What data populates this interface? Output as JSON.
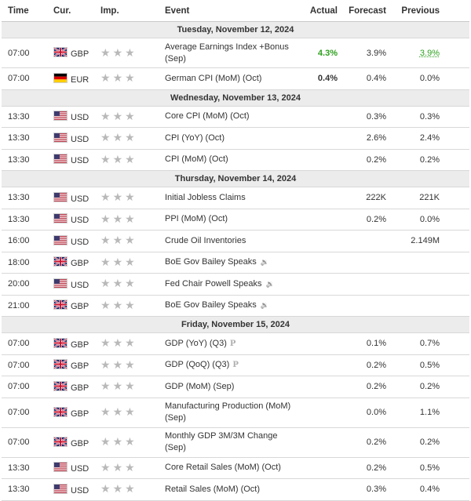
{
  "columns": {
    "time": "Time",
    "currency": "Cur.",
    "importance": "Imp.",
    "event": "Event",
    "actual": "Actual",
    "forecast": "Forecast",
    "previous": "Previous"
  },
  "days": [
    {
      "label": "Tuesday, November 12, 2024",
      "events": [
        {
          "time": "07:00",
          "flag": "gb",
          "currency": "GBP",
          "event": "Average Earnings Index +Bonus (Sep)",
          "icon": "",
          "actual": "4.3%",
          "actual_color": "green",
          "forecast": "3.9%",
          "previous": "3.9%",
          "previous_style": "revised-green",
          "tall": true
        },
        {
          "time": "07:00",
          "flag": "de",
          "currency": "EUR",
          "event": "German CPI (MoM) (Oct)",
          "icon": "",
          "actual": "0.4%",
          "actual_color": "",
          "forecast": "0.4%",
          "previous": "0.0%",
          "previous_style": "",
          "tall": false
        }
      ]
    },
    {
      "label": "Wednesday, November 13, 2024",
      "events": [
        {
          "time": "13:30",
          "flag": "us",
          "currency": "USD",
          "event": "Core CPI (MoM) (Oct)",
          "icon": "",
          "actual": "",
          "actual_color": "",
          "forecast": "0.3%",
          "previous": "0.3%",
          "previous_style": "",
          "tall": false
        },
        {
          "time": "13:30",
          "flag": "us",
          "currency": "USD",
          "event": "CPI (YoY) (Oct)",
          "icon": "",
          "actual": "",
          "actual_color": "",
          "forecast": "2.6%",
          "previous": "2.4%",
          "previous_style": "",
          "tall": false
        },
        {
          "time": "13:30",
          "flag": "us",
          "currency": "USD",
          "event": "CPI (MoM) (Oct)",
          "icon": "",
          "actual": "",
          "actual_color": "",
          "forecast": "0.2%",
          "previous": "0.2%",
          "previous_style": "",
          "tall": false
        }
      ]
    },
    {
      "label": "Thursday, November 14, 2024",
      "events": [
        {
          "time": "13:30",
          "flag": "us",
          "currency": "USD",
          "event": "Initial Jobless Claims",
          "icon": "",
          "actual": "",
          "actual_color": "",
          "forecast": "222K",
          "previous": "221K",
          "previous_style": "",
          "tall": false
        },
        {
          "time": "13:30",
          "flag": "us",
          "currency": "USD",
          "event": "PPI (MoM) (Oct)",
          "icon": "",
          "actual": "",
          "actual_color": "",
          "forecast": "0.2%",
          "previous": "0.0%",
          "previous_style": "",
          "tall": false
        },
        {
          "time": "16:00",
          "flag": "us",
          "currency": "USD",
          "event": "Crude Oil Inventories",
          "icon": "",
          "actual": "",
          "actual_color": "",
          "forecast": "",
          "previous": "2.149M",
          "previous_style": "",
          "tall": false
        },
        {
          "time": "18:00",
          "flag": "gb",
          "currency": "GBP",
          "event": "BoE Gov Bailey Speaks",
          "icon": "speaker",
          "actual": "",
          "actual_color": "",
          "forecast": "",
          "previous": "",
          "previous_style": "",
          "tall": false
        },
        {
          "time": "20:00",
          "flag": "us",
          "currency": "USD",
          "event": "Fed Chair Powell Speaks",
          "icon": "speaker",
          "actual": "",
          "actual_color": "",
          "forecast": "",
          "previous": "",
          "previous_style": "",
          "tall": false
        },
        {
          "time": "21:00",
          "flag": "gb",
          "currency": "GBP",
          "event": "BoE Gov Bailey Speaks",
          "icon": "speaker",
          "actual": "",
          "actual_color": "",
          "forecast": "",
          "previous": "",
          "previous_style": "",
          "tall": false
        }
      ]
    },
    {
      "label": "Friday, November 15, 2024",
      "events": [
        {
          "time": "07:00",
          "flag": "gb",
          "currency": "GBP",
          "event": "GDP (YoY) (Q3)",
          "icon": "preliminary",
          "actual": "",
          "actual_color": "",
          "forecast": "0.1%",
          "previous": "0.7%",
          "previous_style": "",
          "tall": false
        },
        {
          "time": "07:00",
          "flag": "gb",
          "currency": "GBP",
          "event": "GDP (QoQ) (Q3)",
          "icon": "preliminary",
          "actual": "",
          "actual_color": "",
          "forecast": "0.2%",
          "previous": "0.5%",
          "previous_style": "",
          "tall": false
        },
        {
          "time": "07:00",
          "flag": "gb",
          "currency": "GBP",
          "event": "GDP (MoM) (Sep)",
          "icon": "",
          "actual": "",
          "actual_color": "",
          "forecast": "0.2%",
          "previous": "0.2%",
          "previous_style": "",
          "tall": false
        },
        {
          "time": "07:00",
          "flag": "gb",
          "currency": "GBP",
          "event": "Manufacturing Production (MoM) (Sep)",
          "icon": "",
          "actual": "",
          "actual_color": "",
          "forecast": "0.0%",
          "previous": "1.1%",
          "previous_style": "",
          "tall": true
        },
        {
          "time": "07:00",
          "flag": "gb",
          "currency": "GBP",
          "event": "Monthly GDP 3M/3M Change (Sep)",
          "icon": "",
          "actual": "",
          "actual_color": "",
          "forecast": "0.2%",
          "previous": "0.2%",
          "previous_style": "",
          "tall": true
        },
        {
          "time": "13:30",
          "flag": "us",
          "currency": "USD",
          "event": "Core Retail Sales (MoM) (Oct)",
          "icon": "",
          "actual": "",
          "actual_color": "",
          "forecast": "0.2%",
          "previous": "0.5%",
          "previous_style": "",
          "tall": false
        },
        {
          "time": "13:30",
          "flag": "us",
          "currency": "USD",
          "event": "Retail Sales (MoM) (Oct)",
          "icon": "",
          "actual": "",
          "actual_color": "",
          "forecast": "0.3%",
          "previous": "0.4%",
          "previous_style": "",
          "tall": false
        }
      ]
    }
  ],
  "importance_stars": 3,
  "colors": {
    "accent_green": "#2ea01e",
    "star_gray": "#b9b9b9",
    "day_header_bg": "#ececec"
  }
}
